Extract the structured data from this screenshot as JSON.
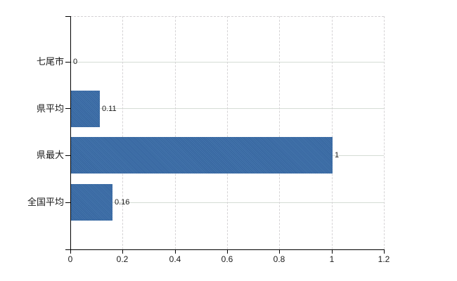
{
  "chart_data": {
    "type": "bar",
    "orientation": "horizontal",
    "title": "",
    "xlabel": "",
    "ylabel": "",
    "categories": [
      "七尾市",
      "県平均",
      "県最大",
      "全国平均"
    ],
    "values": [
      0,
      0.11,
      1,
      0.16
    ],
    "value_labels": [
      "0",
      "0.11",
      "1",
      "0.16"
    ],
    "xlim": [
      0,
      1.2
    ],
    "x_ticks": [
      0,
      0.2,
      0.4,
      0.6,
      0.8,
      1,
      1.2
    ],
    "x_tick_labels": [
      "0",
      "0.2",
      "0.4",
      "0.6",
      "0.8",
      "1",
      "1.2"
    ],
    "grid": "on",
    "legend": "none",
    "colors": {
      "bar": "#3c6da7",
      "grid_horizontal": "#d5dcd5",
      "grid_vertical": "#d6d4d6",
      "plot_border_dashed": "#d2d0d2",
      "axis": "#000000",
      "text": "#1a1a1a",
      "background": "#ffffff"
    }
  }
}
